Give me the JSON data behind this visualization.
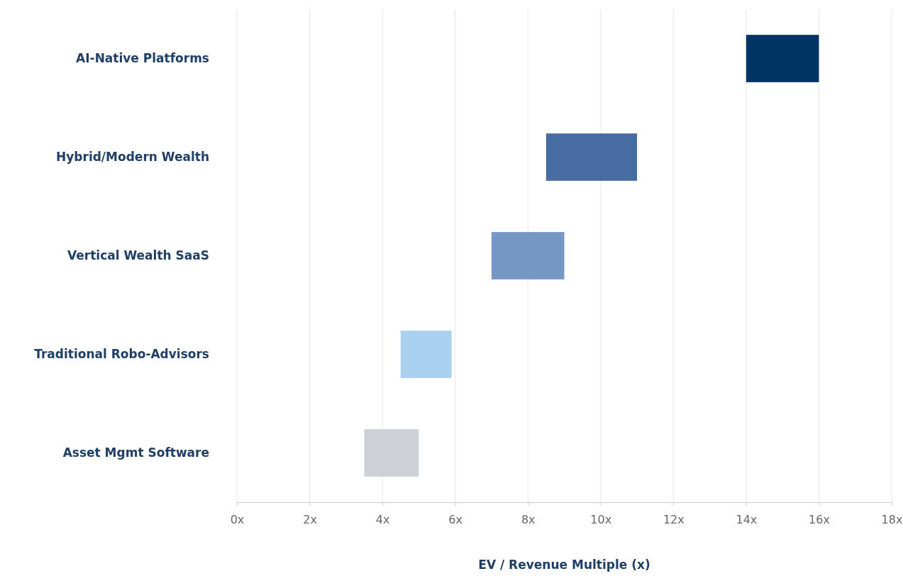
{
  "chart_data": {
    "type": "bar",
    "orientation": "horizontal",
    "xlabel": "EV / Revenue Multiple (x)",
    "categories": [
      "AI-Native Platforms",
      "Hybrid/Modern Wealth",
      "Vertical Wealth SaaS",
      "Traditional Robo-Advisors",
      "Asset Mgmt Software"
    ],
    "base": [
      14,
      8.5,
      7,
      4.5,
      3.5
    ],
    "values": [
      2,
      2.5,
      2,
      1.4,
      1.5
    ],
    "colors": [
      "#003462",
      "#476ca3",
      "#7497c4",
      "#aad0f0",
      "#cdd1d5"
    ],
    "xlim": [
      0,
      18
    ],
    "xticks": [
      {
        "value": 0,
        "label": "0x"
      },
      {
        "value": 2,
        "label": "2x"
      },
      {
        "value": 4,
        "label": "4x"
      },
      {
        "value": 6,
        "label": "6x"
      },
      {
        "value": 8,
        "label": "8x"
      },
      {
        "value": 10,
        "label": "10x"
      },
      {
        "value": 12,
        "label": "12x"
      },
      {
        "value": 14,
        "label": "14x"
      },
      {
        "value": 16,
        "label": "16x"
      },
      {
        "value": 18,
        "label": "18x"
      }
    ],
    "grid": "x"
  }
}
